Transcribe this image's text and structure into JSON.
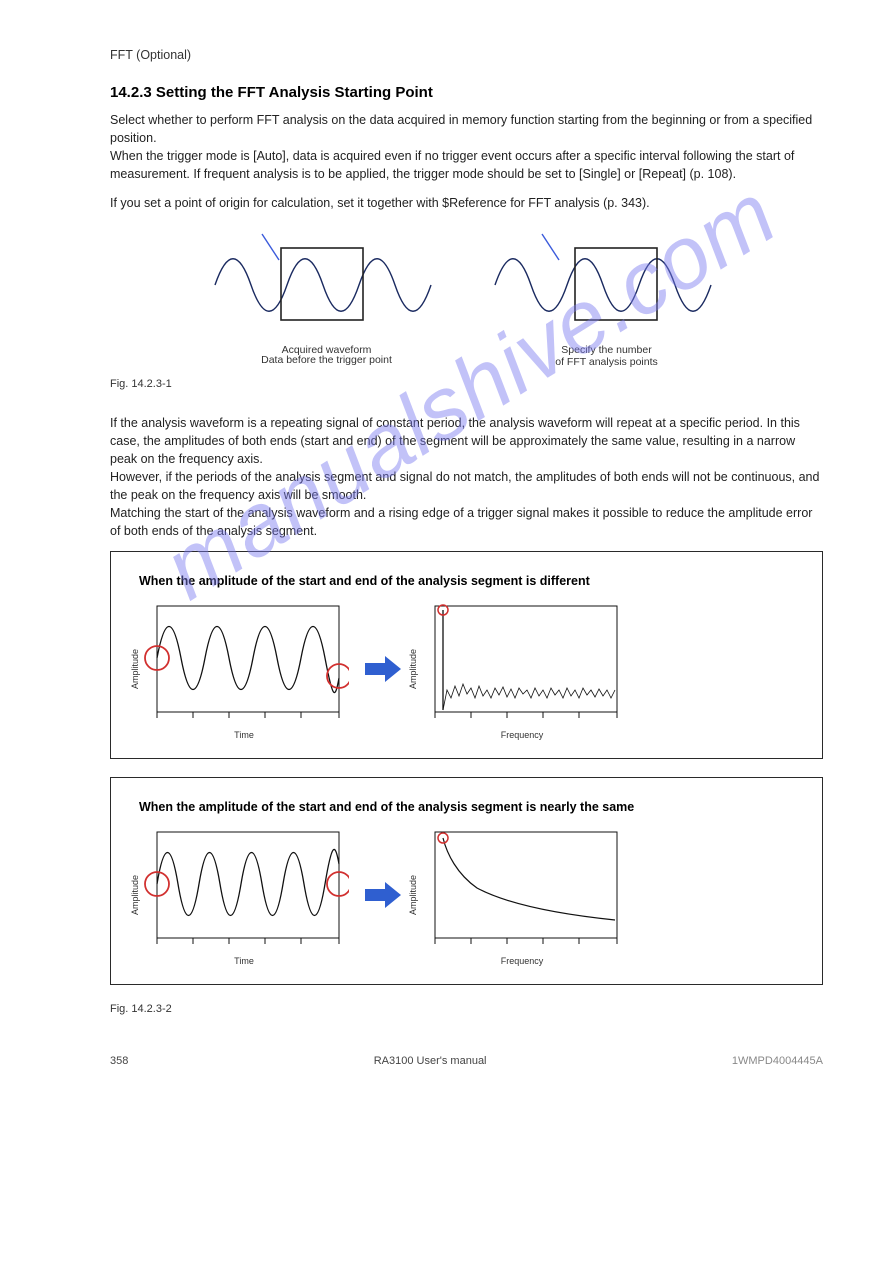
{
  "header": {
    "page_top": "FFT (Optional)"
  },
  "section": {
    "heading": "14.2.3 Setting the FFT Analysis Starting Point",
    "p1": "Select whether to perform FFT analysis on the data acquired in memory function starting from the beginning or from a specified position.\nWhen the trigger mode is [Auto], data is acquired even if no trigger event occurs after a specific interval following the start of measurement. If frequent analysis is to be applied, the trigger mode should be set to [Single] or [Repeat] (p. 108).",
    "p2": "If you set a point of origin for calculation, set it together with $Reference for FFT analysis (p. 343)."
  },
  "fig358": {
    "left_label": "Acquired waveform",
    "left_sub": "Data before the trigger point",
    "right_label": "Specify the number\nof FFT analysis points",
    "caption": "Fig. 14.2.3-1",
    "line_color": "#1a2a60",
    "pointer_color": "#3b5bdb",
    "box_color": "#222222"
  },
  "panelA": {
    "title": "When the amplitude of the start and end of the analysis segment is different",
    "left": {
      "ylabel": "Amplitude",
      "xlabel": "Time",
      "circle_color": "#d1302f",
      "line_color": "#111111"
    },
    "right": {
      "ylabel": "Amplitude",
      "xlabel": "Frequency",
      "circle_color": "#d1302f",
      "line_color": "#111111"
    },
    "arrow_color": "#2f5fd0"
  },
  "panelB": {
    "title": "When the amplitude of the start and end of the analysis segment is nearly the same",
    "left": {
      "ylabel": "Amplitude",
      "xlabel": "Time",
      "circle_color": "#d1302f",
      "line_color": "#111111"
    },
    "right": {
      "ylabel": "Amplitude",
      "xlabel": "Frequency",
      "circle_color": "#d1302f",
      "line_color": "#111111"
    },
    "arrow_color": "#2f5fd0"
  },
  "caption2": "Fig. 14.2.3-2",
  "footer": {
    "left": "RA3100 User's manual",
    "right": "1WMPD4004445A"
  },
  "footer_page": "358",
  "watermark": "manualshive.com"
}
